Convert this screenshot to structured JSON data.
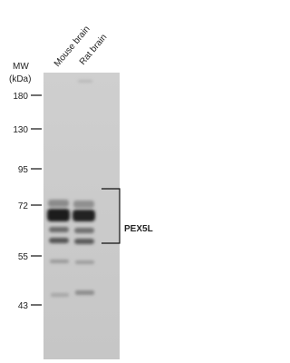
{
  "lanes": [
    "Mouse brain",
    "Rat brain"
  ],
  "mw_label": "MW",
  "mw_unit": "(kDa)",
  "markers": [
    180,
    130,
    95,
    72,
    55,
    43
  ],
  "target": "PEX5L"
}
